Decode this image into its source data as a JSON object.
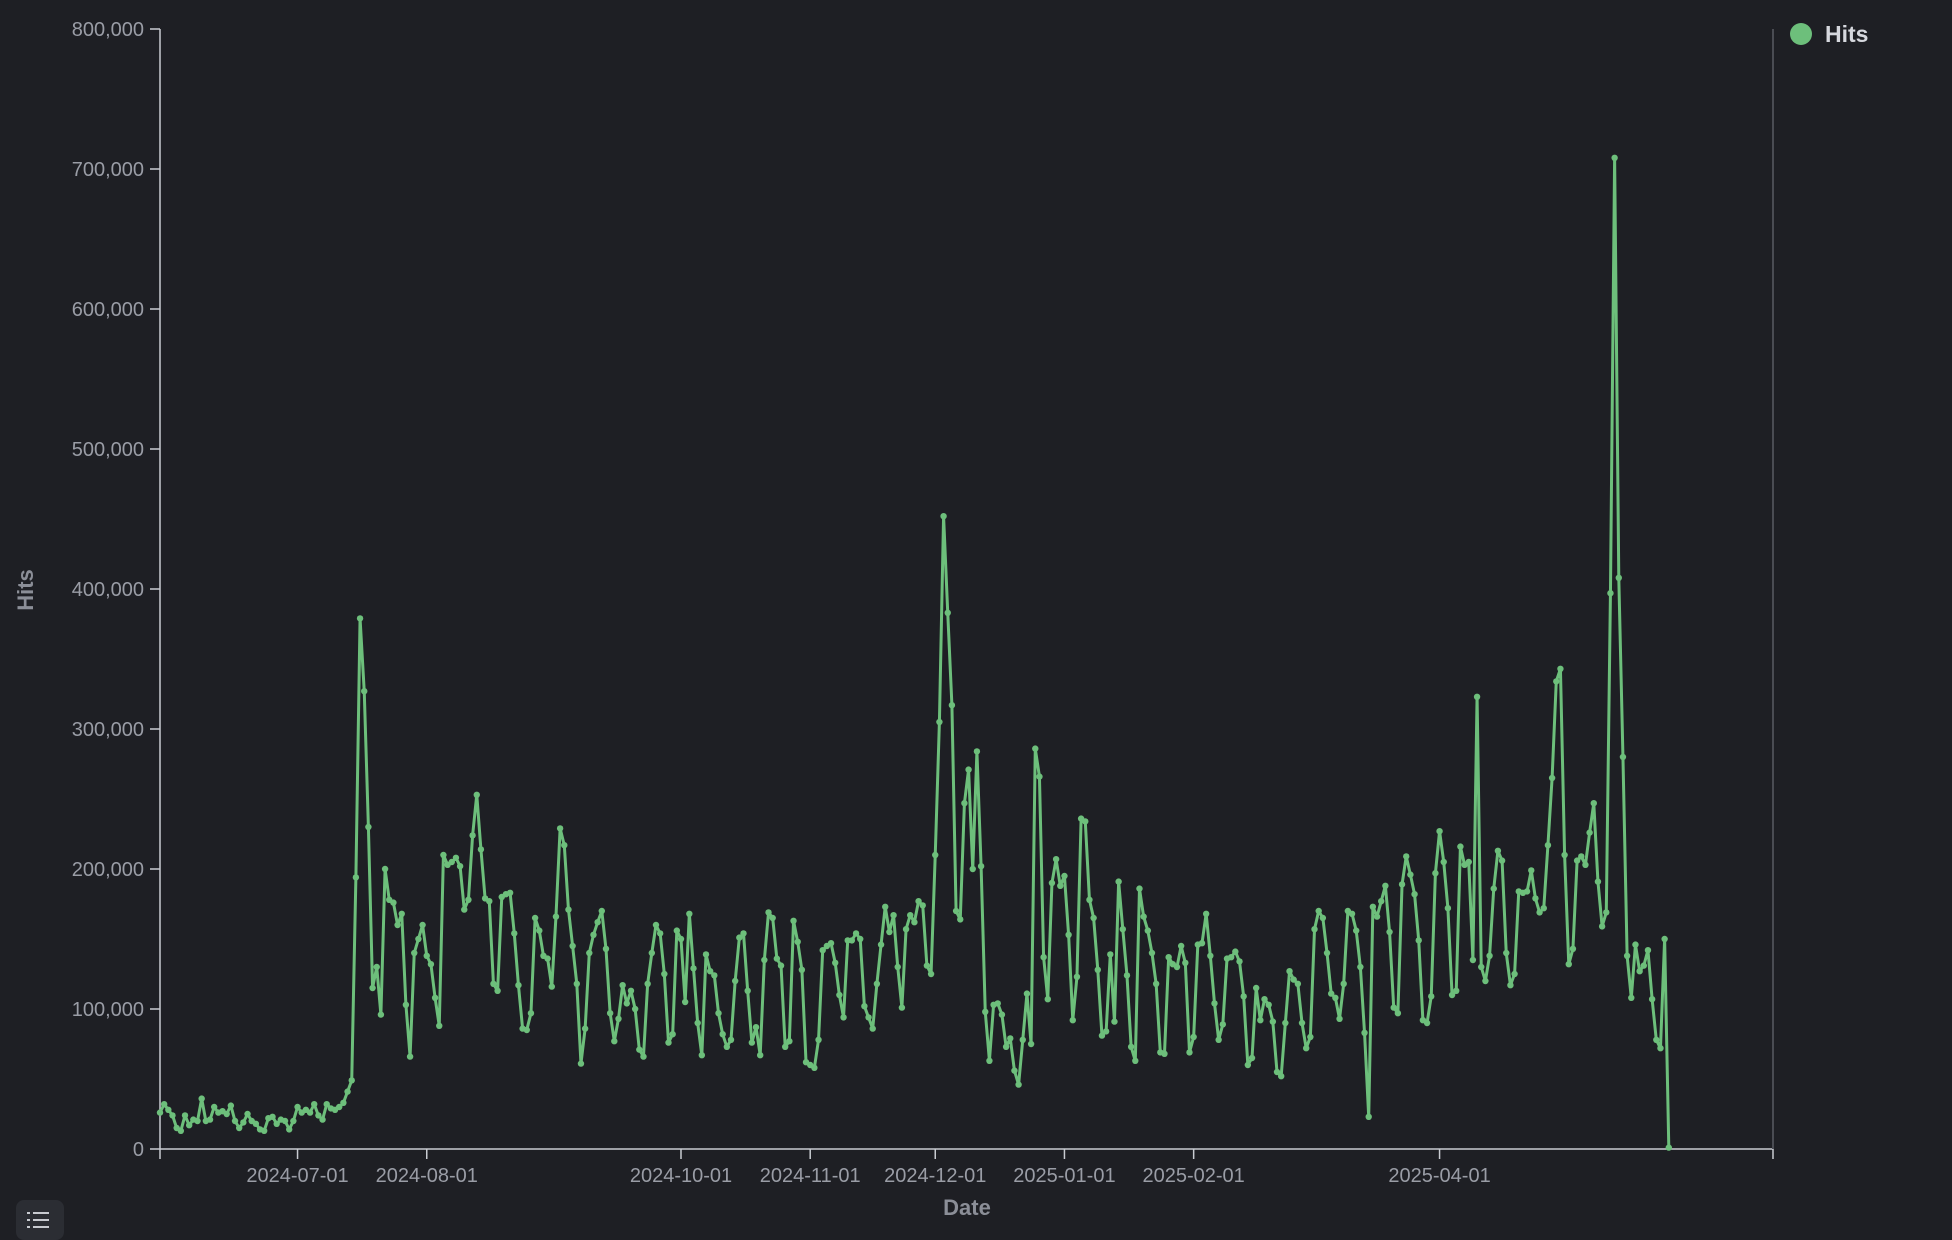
{
  "colors": {
    "background": "#1e1f24",
    "line": "#6dbf7b",
    "axis": "#c9ccd2",
    "text": "#9a9da6"
  },
  "chart_data": {
    "type": "line",
    "xlabel": "Date",
    "ylabel": "Hits",
    "legend": {
      "placement": "top-right",
      "entries": [
        "Hits"
      ]
    },
    "x_range": [
      "2024-05-29",
      "2025-06-20"
    ],
    "ylim": [
      0,
      800000
    ],
    "y_ticks": [
      0,
      100000,
      200000,
      300000,
      400000,
      500000,
      600000,
      700000,
      800000
    ],
    "y_tick_labels": [
      "0",
      "100,000",
      "200,000",
      "300,000",
      "400,000",
      "500,000",
      "600,000",
      "700,000",
      "800,000"
    ],
    "x_tick_labels": [
      "2024-07-01",
      "2024-08-01",
      "2024-10-01",
      "2024-11-01",
      "2024-12-01",
      "2025-01-01",
      "2025-02-01",
      "2025-04-01"
    ],
    "grid": false,
    "series": [
      {
        "name": "Hits",
        "start_date": "2024-05-29",
        "values": [
          26000,
          32000,
          28000,
          24000,
          15000,
          13000,
          24000,
          17000,
          21000,
          20000,
          36000,
          20000,
          21000,
          30000,
          26000,
          27000,
          25000,
          31000,
          20000,
          15000,
          19000,
          25000,
          20000,
          18000,
          14000,
          13000,
          22000,
          23000,
          18000,
          21000,
          20000,
          14000,
          20000,
          30000,
          26000,
          28000,
          26000,
          32000,
          24000,
          21000,
          32000,
          29000,
          28000,
          30000,
          33000,
          41000,
          49000,
          194000,
          379000,
          327000,
          230000,
          115000,
          130000,
          96000,
          200000,
          178000,
          176000,
          160000,
          168000,
          103000,
          66000,
          140000,
          150000,
          160000,
          138000,
          132000,
          108000,
          88000,
          210000,
          203000,
          205000,
          208000,
          202000,
          171000,
          178000,
          224000,
          253000,
          214000,
          179000,
          177000,
          118000,
          113000,
          180000,
          182000,
          183000,
          154000,
          117000,
          86000,
          85000,
          97000,
          165000,
          156000,
          138000,
          136000,
          116000,
          166000,
          229000,
          217000,
          171000,
          145000,
          118000,
          61000,
          86000,
          140000,
          153000,
          162000,
          170000,
          143000,
          97000,
          77000,
          93000,
          117000,
          104000,
          113000,
          100000,
          71000,
          66000,
          118000,
          140000,
          160000,
          154000,
          125000,
          76000,
          82000,
          156000,
          150000,
          105000,
          168000,
          129000,
          90000,
          67000,
          139000,
          127000,
          124000,
          97000,
          82000,
          73000,
          78000,
          120000,
          151000,
          154000,
          113000,
          76000,
          87000,
          67000,
          135000,
          169000,
          165000,
          136000,
          131000,
          73000,
          77000,
          163000,
          148000,
          128000,
          62000,
          60000,
          58000,
          78000,
          142000,
          145000,
          147000,
          133000,
          110000,
          94000,
          149000,
          149000,
          154000,
          150000,
          102000,
          94000,
          86000,
          118000,
          146000,
          173000,
          155000,
          167000,
          130000,
          101000,
          157000,
          167000,
          162000,
          177000,
          174000,
          131000,
          125000,
          210000,
          305000,
          452000,
          383000,
          317000,
          170000,
          164000,
          247000,
          271000,
          200000,
          284000,
          202000,
          98000,
          63000,
          103000,
          104000,
          96000,
          73000,
          79000,
          56000,
          46000,
          78000,
          111000,
          75000,
          286000,
          266000,
          137000,
          107000,
          190000,
          207000,
          188000,
          195000,
          153000,
          92000,
          123000,
          236000,
          234000,
          178000,
          165000,
          128000,
          81000,
          84000,
          139000,
          91000,
          191000,
          157000,
          124000,
          73000,
          63000,
          186000,
          166000,
          156000,
          140000,
          118000,
          69000,
          68000,
          137000,
          132000,
          130000,
          145000,
          133000,
          69000,
          80000,
          146000,
          147000,
          168000,
          138000,
          104000,
          78000,
          89000,
          136000,
          137000,
          141000,
          134000,
          109000,
          60000,
          65000,
          115000,
          92000,
          107000,
          103000,
          91000,
          55000,
          52000,
          90000,
          127000,
          121000,
          118000,
          90000,
          72000,
          80000,
          157000,
          170000,
          165000,
          140000,
          111000,
          108000,
          93000,
          118000,
          170000,
          168000,
          156000,
          130000,
          83000,
          23000,
          173000,
          166000,
          177000,
          188000,
          155000,
          101000,
          97000,
          189000,
          209000,
          196000,
          182000,
          149000,
          92000,
          90000,
          109000,
          197000,
          227000,
          205000,
          172000,
          110000,
          113000,
          216000,
          203000,
          205000,
          135000,
          323000,
          130000,
          120000,
          138000,
          186000,
          213000,
          206000,
          140000,
          117000,
          125000,
          184000,
          183000,
          184000,
          199000,
          179000,
          169000,
          172000,
          217000,
          265000,
          334000,
          343000,
          210000,
          132000,
          143000,
          206000,
          209000,
          203000,
          226000,
          247000,
          191000,
          159000,
          169000,
          397000,
          708000,
          408000,
          280000,
          138000,
          108000,
          146000,
          127000,
          131000,
          142000,
          107000,
          78000,
          72000,
          150000,
          1000
        ]
      }
    ]
  }
}
